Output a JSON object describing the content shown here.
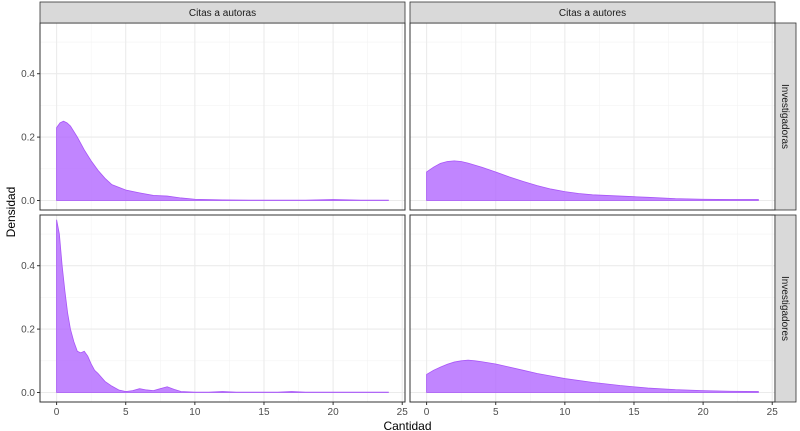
{
  "colors": {
    "fill": "#b266ff",
    "stroke": "#a855f7",
    "strip_bg": "#d9d9d9",
    "grid_major": "#ebebeb",
    "grid_minor": "#f3f3f3",
    "panel_border": "#333333"
  },
  "chart_data": {
    "type": "area",
    "subtype": "faceted density",
    "xlabel": "Cantidad",
    "ylabel": "Densidad",
    "xlim": [
      -1.2,
      25.2
    ],
    "ylim": [
      -0.03,
      0.56
    ],
    "x_ticks": [
      0,
      5,
      10,
      15,
      20,
      25
    ],
    "y_ticks": [
      0.0,
      0.2,
      0.4
    ],
    "grid": true,
    "col_facets": [
      "Citas a autoras",
      "Citas a autores"
    ],
    "row_facets": [
      "Investigadoras",
      "Investigadores"
    ],
    "panels": [
      {
        "row": "Investigadoras",
        "col": "Citas a autoras",
        "x": [
          0,
          0.25,
          0.5,
          0.75,
          1,
          1.5,
          2,
          2.5,
          3,
          3.5,
          4,
          5,
          6,
          7,
          8,
          9,
          10,
          12,
          14,
          16,
          18,
          20,
          22,
          24
        ],
        "y": [
          0.23,
          0.245,
          0.25,
          0.245,
          0.235,
          0.2,
          0.16,
          0.125,
          0.095,
          0.07,
          0.05,
          0.033,
          0.024,
          0.016,
          0.014,
          0.008,
          0.004,
          0.002,
          0.001,
          0.001,
          0.001,
          0.003,
          0.001,
          0.001
        ]
      },
      {
        "row": "Investigadoras",
        "col": "Citas a autores",
        "x": [
          0,
          0.5,
          1,
          1.5,
          2,
          2.5,
          3,
          4,
          5,
          6,
          7,
          8,
          9,
          10,
          11,
          12,
          13,
          14,
          15,
          16,
          18,
          20,
          22,
          24
        ],
        "y": [
          0.09,
          0.105,
          0.117,
          0.123,
          0.125,
          0.123,
          0.118,
          0.105,
          0.09,
          0.074,
          0.06,
          0.047,
          0.036,
          0.028,
          0.022,
          0.018,
          0.016,
          0.014,
          0.012,
          0.01,
          0.006,
          0.004,
          0.003,
          0.003
        ]
      },
      {
        "row": "Investigadores",
        "col": "Citas a autoras",
        "x": [
          0,
          0.2,
          0.4,
          0.6,
          0.8,
          1,
          1.25,
          1.5,
          1.75,
          2,
          2.25,
          2.5,
          2.75,
          3,
          3.5,
          4,
          4.5,
          5,
          5.5,
          6,
          6.5,
          7,
          7.5,
          8,
          8.5,
          9,
          10,
          11,
          12,
          13,
          14,
          15,
          16,
          17,
          18,
          19,
          20,
          22,
          24
        ],
        "y": [
          0.545,
          0.5,
          0.4,
          0.32,
          0.25,
          0.2,
          0.16,
          0.13,
          0.125,
          0.13,
          0.115,
          0.09,
          0.07,
          0.06,
          0.035,
          0.02,
          0.008,
          0.003,
          0.006,
          0.012,
          0.008,
          0.006,
          0.012,
          0.018,
          0.01,
          0.003,
          0.001,
          0.001,
          0.003,
          0.001,
          0.001,
          0.001,
          0.001,
          0.003,
          0.001,
          0.001,
          0.001,
          0.001,
          0.001
        ]
      },
      {
        "row": "Investigadores",
        "col": "Citas a autores",
        "x": [
          0,
          0.5,
          1,
          1.5,
          2,
          2.5,
          3,
          3.5,
          4,
          5,
          6,
          7,
          8,
          9,
          10,
          12,
          14,
          16,
          18,
          20,
          22,
          24
        ],
        "y": [
          0.057,
          0.07,
          0.08,
          0.089,
          0.096,
          0.1,
          0.102,
          0.1,
          0.097,
          0.09,
          0.08,
          0.07,
          0.06,
          0.052,
          0.044,
          0.032,
          0.022,
          0.014,
          0.009,
          0.006,
          0.004,
          0.003
        ]
      }
    ]
  }
}
